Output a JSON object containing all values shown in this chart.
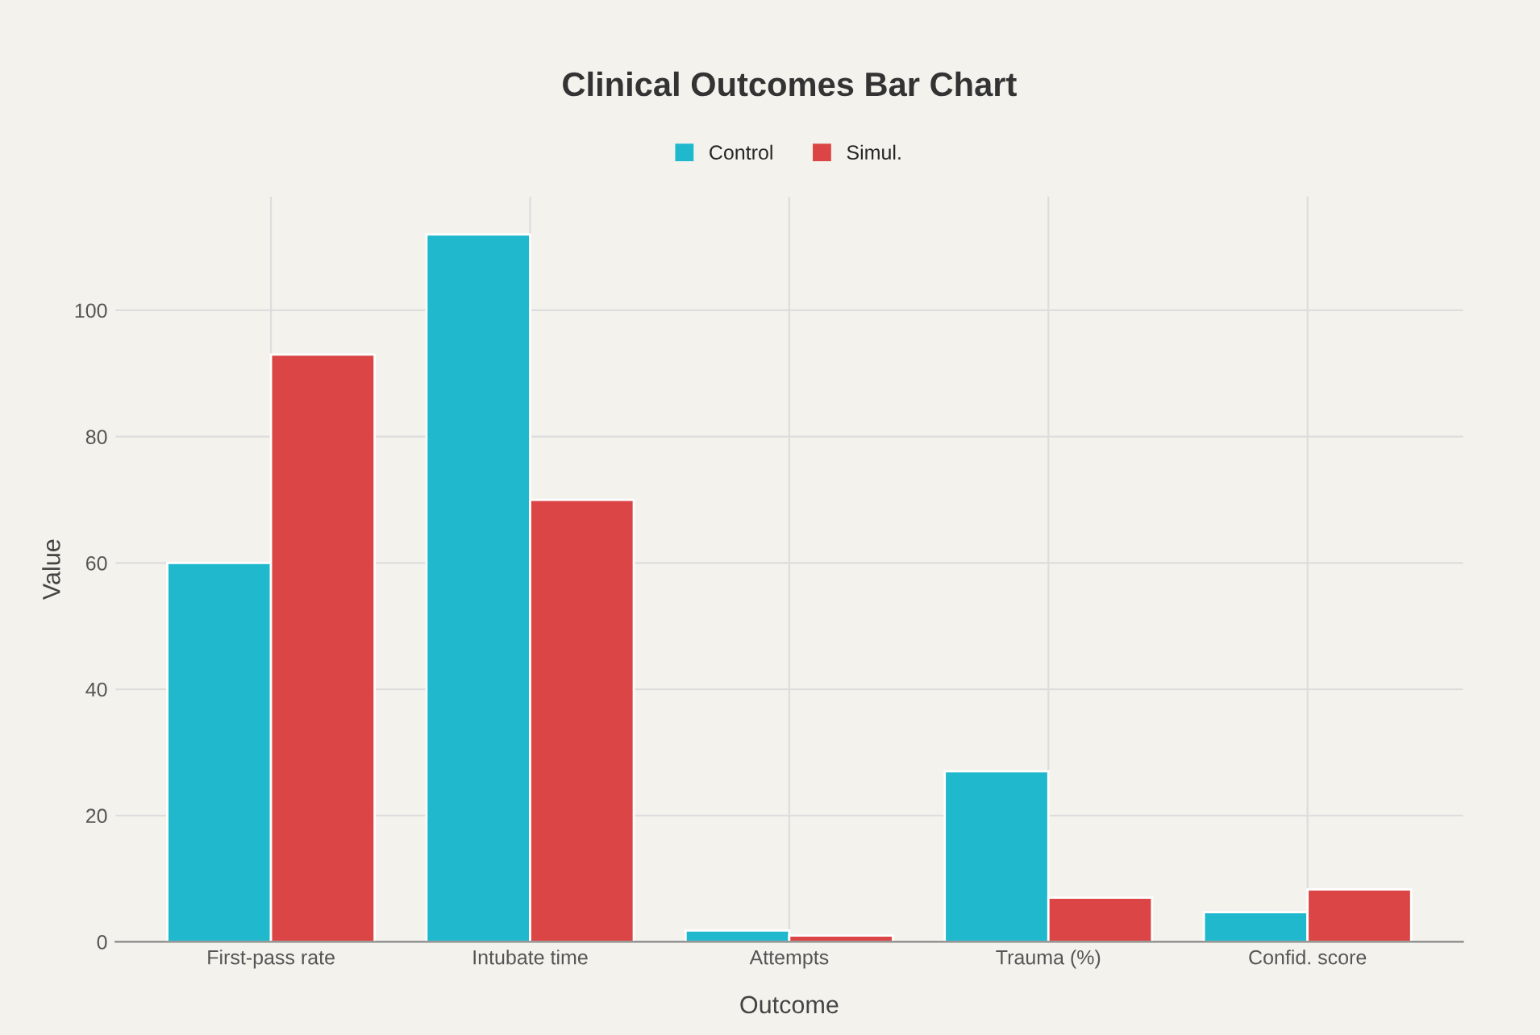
{
  "chart_data": {
    "type": "bar",
    "title": "Clinical Outcomes Bar Chart",
    "xlabel": "Outcome",
    "ylabel": "Value",
    "categories": [
      "First-pass rate",
      "Intubate time",
      "Attempts",
      "Trauma (%)",
      "Confid. score"
    ],
    "series": [
      {
        "name": "Control",
        "color": "#1fb8cd",
        "values": [
          60,
          112,
          1.8,
          27,
          4.7
        ]
      },
      {
        "name": "Simul.",
        "color": "#db4545",
        "values": [
          93,
          70,
          1,
          7,
          8.3
        ]
      }
    ],
    "ylim": [
      0,
      118
    ],
    "yticks": [
      0,
      20,
      40,
      60,
      80,
      100
    ],
    "grid": true,
    "legend": "top"
  }
}
